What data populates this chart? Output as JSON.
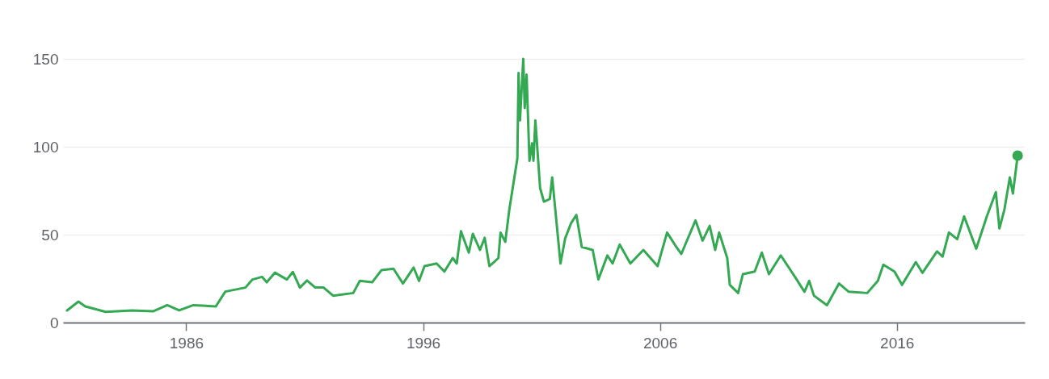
{
  "chart_data": {
    "type": "line",
    "xlim": [
      1980.8,
      2021.4
    ],
    "xticks": [
      1986,
      1996,
      2006,
      2016
    ],
    "ylim": [
      0,
      150
    ],
    "yticks": [
      0,
      50,
      100,
      150
    ],
    "grid": "y",
    "series": [
      {
        "color": "#34a853",
        "x": [
          1980.97,
          1981.45,
          1981.74,
          1982.6,
          1983.7,
          1984.6,
          1985.2,
          1985.7,
          1986.3,
          1987.25,
          1987.65,
          1988.5,
          1988.8,
          1989.2,
          1989.4,
          1989.75,
          1990.25,
          1990.5,
          1990.8,
          1991.1,
          1991.45,
          1991.8,
          1992.2,
          1993.05,
          1993.33,
          1993.85,
          1994.24,
          1994.75,
          1995.15,
          1995.6,
          1995.83,
          1996.06,
          1996.57,
          1996.9,
          1997.25,
          1997.42,
          1997.6,
          1997.93,
          1998.1,
          1998.4,
          1998.6,
          1998.8,
          1999.18,
          1999.27,
          1999.47,
          1999.64,
          1999.8,
          1999.98,
          2000.03,
          2000.09,
          2000.23,
          2000.29,
          2000.37,
          2000.49,
          2000.6,
          2000.66,
          2000.74,
          2000.94,
          2001.1,
          2001.35,
          2001.45,
          2001.8,
          2002.0,
          2002.25,
          2002.47,
          2002.7,
          2003.16,
          2003.4,
          2003.78,
          2004.0,
          2004.3,
          2004.75,
          2005.3,
          2005.9,
          2006.3,
          2006.7,
          2006.9,
          2007.5,
          2007.8,
          2008.1,
          2008.33,
          2008.5,
          2008.84,
          2008.95,
          2009.3,
          2009.5,
          2010.0,
          2010.3,
          2010.6,
          2011.1,
          2011.7,
          2012.1,
          2012.3,
          2012.5,
          2013.05,
          2013.56,
          2013.96,
          2014.75,
          2015.2,
          2015.43,
          2015.9,
          2016.22,
          2016.8,
          2017.08,
          2017.7,
          2017.93,
          2018.2,
          2018.55,
          2018.84,
          2019.35,
          2019.8,
          2020.18,
          2020.33,
          2020.54,
          2020.77,
          2020.9,
          2021.1
        ],
        "values": [
          6.9,
          11.9,
          9.2,
          6.1,
          6.9,
          6.4,
          9.9,
          6.9,
          9.9,
          9.2,
          17.6,
          19.9,
          24.5,
          26,
          22.9,
          28.4,
          24.5,
          28.8,
          19.9,
          23.9,
          19.9,
          19.9,
          15.3,
          16.8,
          23.7,
          22.9,
          29.8,
          30.6,
          22.2,
          31.3,
          23.7,
          32.1,
          33.6,
          29,
          36.7,
          33.6,
          52,
          39.8,
          50.5,
          41.3,
          48.2,
          32.1,
          36.7,
          51.2,
          45.9,
          64.2,
          78,
          93.3,
          142,
          115,
          150,
          122,
          141,
          92,
          102,
          92,
          115,
          76.5,
          68.8,
          70.3,
          82.6,
          33.6,
          48,
          56.6,
          61.2,
          43,
          41.3,
          24.5,
          38.2,
          33.6,
          44.4,
          33.6,
          41.3,
          32.1,
          51.2,
          42.8,
          39,
          58.1,
          46.6,
          55,
          41.3,
          51.2,
          36.7,
          21.4,
          16.8,
          27.5,
          29,
          39.8,
          27.5,
          38.2,
          26,
          17.5,
          23.7,
          15.3,
          9.9,
          22.2,
          17.6,
          16.8,
          23.7,
          32.9,
          29,
          21.4,
          34.4,
          28.3,
          40.5,
          37.5,
          51.2,
          47.4,
          60.4,
          42,
          60.4,
          74.2,
          53.5,
          64.2,
          82.6,
          73.4,
          95
        ]
      },
      {
        "type": "scatter",
        "marker": "circle",
        "color": "#34a853",
        "x": [
          2021.1
        ],
        "values": [
          95
        ]
      }
    ]
  }
}
